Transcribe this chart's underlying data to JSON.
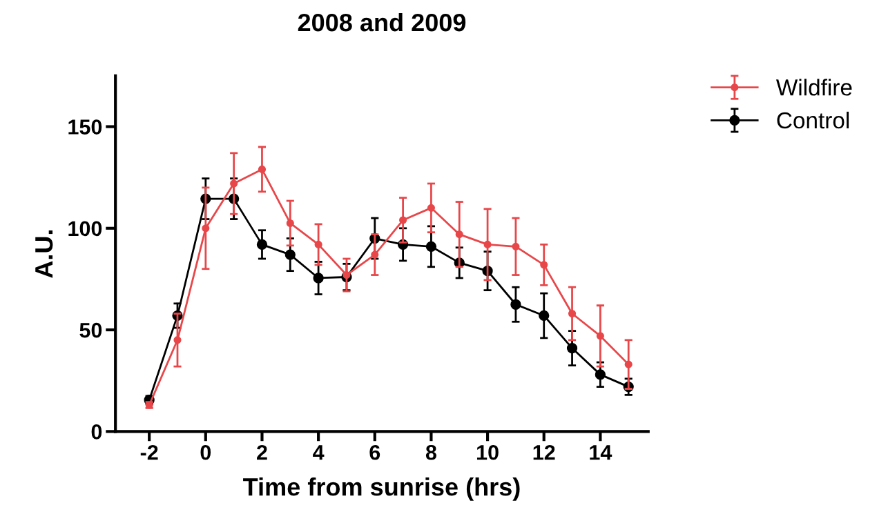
{
  "chart_data": {
    "type": "line",
    "title": "2008 and 2009",
    "xlabel": "Time from sunrise (hrs)",
    "ylabel": "A.U.",
    "x": [
      -2,
      -1,
      0,
      1,
      2,
      3,
      4,
      5,
      6,
      7,
      8,
      9,
      10,
      11,
      12,
      13,
      14,
      15
    ],
    "series": [
      {
        "name": "Wildfire",
        "color": "#e8474a",
        "values": [
          13,
          45,
          100,
          122,
          129,
          102.5,
          92,
          77,
          87,
          104,
          110,
          97,
          92,
          91,
          82,
          58,
          47,
          33
        ],
        "errors": [
          1.5,
          13,
          20,
          15,
          11,
          11,
          10,
          8,
          10,
          11,
          12,
          16,
          17.5,
          14,
          10,
          13,
          15,
          12
        ]
      },
      {
        "name": "Control",
        "color": "#000000",
        "values": [
          15.5,
          57,
          114.5,
          114.5,
          92,
          87,
          75.5,
          76,
          95,
          92,
          91,
          83,
          79,
          62.5,
          57,
          41,
          28,
          22
        ],
        "errors": [
          2,
          6,
          10,
          10,
          7,
          8,
          8,
          6.5,
          10,
          8,
          10,
          7.5,
          9.5,
          8.5,
          11,
          8.5,
          6,
          4
        ]
      }
    ],
    "xlim": [
      -3.2,
      15.7
    ],
    "xticks": [
      -2,
      0,
      2,
      4,
      6,
      8,
      10,
      12,
      14
    ],
    "ylim": [
      0,
      175
    ],
    "yticks": [
      0,
      50,
      100,
      150
    ],
    "grid": false,
    "legend": "top right",
    "marker": "circle",
    "line_style": "solid"
  }
}
